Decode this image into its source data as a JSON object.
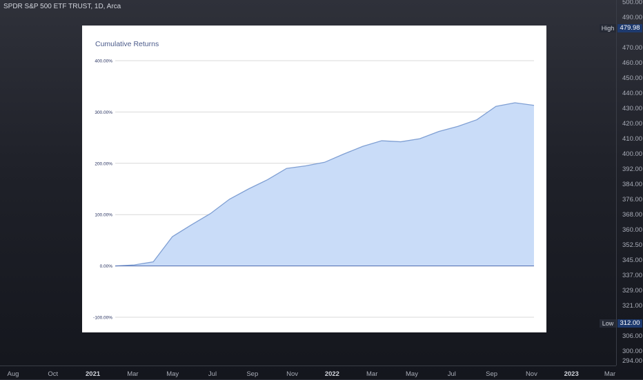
{
  "header": {
    "title": "SPDR S&P 500 ETF TRUST, 1D, Arca"
  },
  "price_axis": {
    "labels": [
      "500.00",
      "490.00",
      "479.98",
      "470.00",
      "460.00",
      "450.00",
      "440.00",
      "430.00",
      "420.00",
      "410.00",
      "400.00",
      "392.00",
      "384.00",
      "376.00",
      "368.00",
      "360.00",
      "352.50",
      "345.00",
      "337.00",
      "329.00",
      "321.00",
      "312.00",
      "306.00",
      "300.00",
      "294.00"
    ],
    "high": {
      "label": "High",
      "value": "479.98"
    },
    "low": {
      "label": "Low",
      "value": "312.00"
    }
  },
  "time_axis": {
    "labels": [
      "Aug",
      "Oct",
      "2021",
      "Mar",
      "May",
      "Jul",
      "Sep",
      "Nov",
      "2022",
      "Mar",
      "May",
      "Jul",
      "Sep",
      "Nov",
      "2023",
      "Mar"
    ],
    "bold": [
      "2021",
      "2022",
      "2023"
    ]
  },
  "chart_data": {
    "type": "area",
    "title": "Cumulative Returns",
    "ylim": [
      -100,
      400
    ],
    "yticks": [
      "400.00%",
      "300.00%",
      "200.00%",
      "100.00%",
      "0.00%",
      "-100.00%"
    ],
    "ytick_values": [
      400,
      300,
      200,
      100,
      0,
      -100
    ],
    "grid": true,
    "series": [
      {
        "values": [
          0,
          2,
          8,
          57,
          80,
          102,
          130,
          150,
          168,
          190,
          195,
          202,
          218,
          233,
          244,
          242,
          248,
          262,
          272,
          285,
          311,
          318,
          313
        ],
        "color": "#7f9fd3",
        "fill": "#c9dcf8"
      }
    ]
  }
}
